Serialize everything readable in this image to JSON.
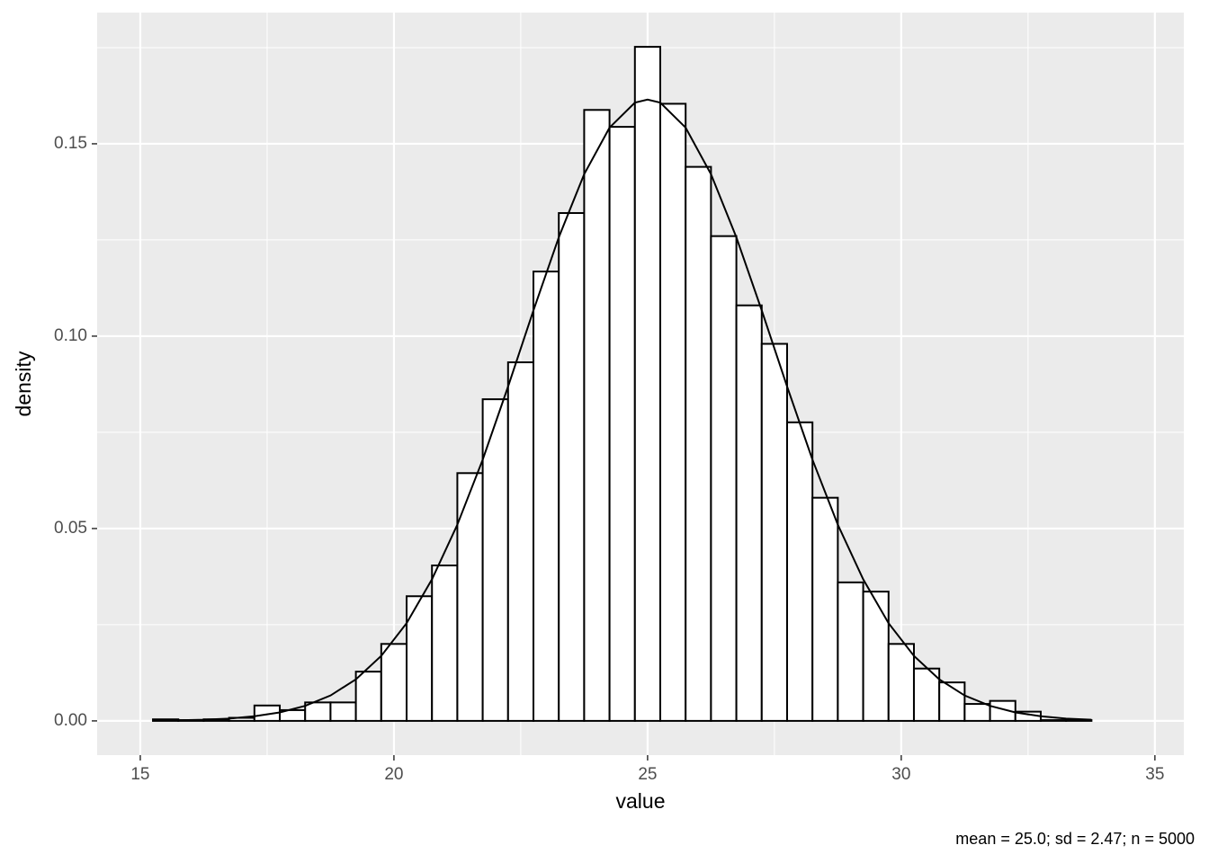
{
  "chart_data": {
    "type": "histogram",
    "x_label": "value",
    "y_label": "density",
    "caption": "mean = 25.0; sd = 2.47; n = 5000",
    "bins": [
      15.25,
      15.75,
      16.25,
      16.75,
      17.25,
      17.75,
      18.25,
      18.75,
      19.25,
      19.75,
      20.25,
      20.75,
      21.25,
      21.75,
      22.25,
      22.75,
      23.25,
      23.75,
      24.25,
      24.75,
      25.25,
      25.75,
      26.25,
      26.75,
      27.25,
      27.75,
      28.25,
      28.75,
      29.25,
      29.75,
      30.25,
      30.75,
      31.25,
      31.75,
      32.25,
      32.75,
      33.25,
      33.75
    ],
    "values": [
      0.0004,
      0.0002,
      0.0004,
      0.0008,
      0.004,
      0.0028,
      0.0048,
      0.0048,
      0.0128,
      0.02,
      0.0324,
      0.0404,
      0.0644,
      0.0836,
      0.0932,
      0.1168,
      0.132,
      0.1588,
      0.1544,
      0.1752,
      0.1604,
      0.144,
      0.126,
      0.108,
      0.098,
      0.0776,
      0.058,
      0.036,
      0.0336,
      0.02,
      0.0136,
      0.01,
      0.0044,
      0.0052,
      0.0024,
      0.0002,
      0.0002
    ],
    "fill": "#ffffff",
    "edge_color": "#000000",
    "curve": {
      "color": "#000000",
      "x": [
        15.25,
        15.75,
        16.25,
        16.75,
        17.25,
        17.75,
        18.25,
        18.75,
        19.25,
        19.75,
        20.25,
        20.75,
        21.25,
        21.75,
        22.25,
        22.75,
        23.25,
        23.75,
        24.25,
        24.75,
        25,
        25.25,
        25.75,
        26.25,
        26.75,
        27.25,
        27.75,
        28.25,
        28.75,
        29.25,
        29.75,
        30.25,
        30.75,
        31.25,
        31.75,
        32.25,
        32.75,
        33.25,
        33.75
      ],
      "values": [
        0.0001,
        0.00015,
        0.0003,
        0.0006,
        0.0012,
        0.0022,
        0.0039,
        0.0066,
        0.0108,
        0.0169,
        0.0254,
        0.0368,
        0.051,
        0.0679,
        0.0869,
        0.1067,
        0.1257,
        0.1421,
        0.1542,
        0.1607,
        0.1615,
        0.1607,
        0.1542,
        0.1421,
        0.1257,
        0.1067,
        0.0869,
        0.0679,
        0.051,
        0.0368,
        0.0254,
        0.0169,
        0.0108,
        0.0066,
        0.0039,
        0.0022,
        0.0012,
        0.0006,
        0.0003
      ]
    },
    "xlim": [
      14.15,
      35.57
    ],
    "ylim": [
      -0.0089,
      0.1841
    ],
    "xticks": [
      15,
      20,
      25,
      30,
      35
    ],
    "yticks": [
      {
        "value": 0,
        "label": "0.00"
      },
      {
        "value": 0.05,
        "label": "0.05"
      },
      {
        "value": 0.1,
        "label": "0.10"
      },
      {
        "value": 0.15,
        "label": "0.15"
      }
    ],
    "xminor": [
      17.5,
      22.5,
      27.5,
      32.5
    ],
    "yminor": [
      0.025,
      0.075,
      0.125,
      0.175
    ],
    "grid": true
  }
}
